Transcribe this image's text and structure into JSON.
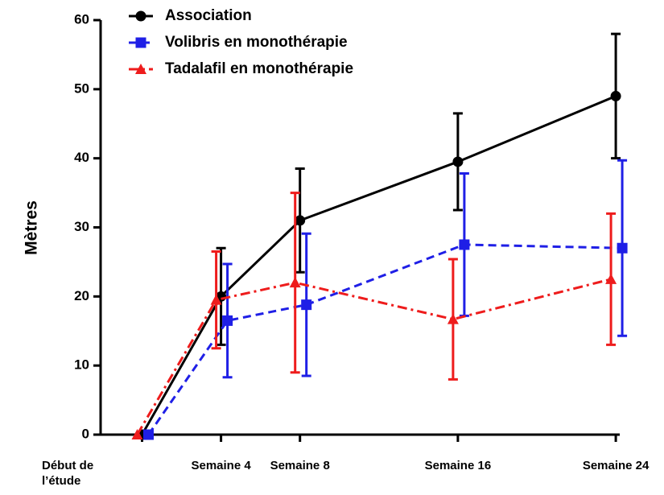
{
  "chart_data": {
    "type": "line",
    "y_label": "Mètres",
    "x": [
      0,
      4,
      8,
      16,
      24
    ],
    "xlim": [
      -2.1,
      24.2
    ],
    "xticks": [
      {
        "value": 0,
        "label": "Début de l’étude"
      },
      {
        "value": 4,
        "label": "Semaine 4"
      },
      {
        "value": 8,
        "label": "Semaine 8"
      },
      {
        "value": 16,
        "label": "Semaine 16"
      },
      {
        "value": 24,
        "label": "Semaine 24"
      }
    ],
    "ylim": [
      0,
      60
    ],
    "yticks": [
      0,
      10,
      20,
      30,
      40,
      50,
      60
    ],
    "legend": "top-left",
    "series": [
      {
        "name": "Association",
        "color": "#000000",
        "marker": "circle",
        "dash": "solid",
        "values": [
          0,
          20,
          31,
          39.5,
          49
        ],
        "errors": [
          null,
          7,
          7.5,
          7,
          9
        ]
      },
      {
        "name": "Volibris en monothérapie",
        "color": "#1f1fe6",
        "marker": "square",
        "dash": "dashed",
        "values": [
          0,
          16.5,
          18.8,
          27.5,
          27
        ],
        "errors": [
          null,
          8.2,
          10.3,
          10.3,
          12.7
        ]
      },
      {
        "name": "Tadalafil en monothérapie",
        "color": "#ee1c1c",
        "marker": "triangle",
        "dash": "dashdot",
        "values": [
          0,
          19.5,
          22,
          16.7,
          22.5
        ],
        "errors": [
          null,
          7,
          13,
          8.7,
          9.5
        ]
      }
    ]
  }
}
